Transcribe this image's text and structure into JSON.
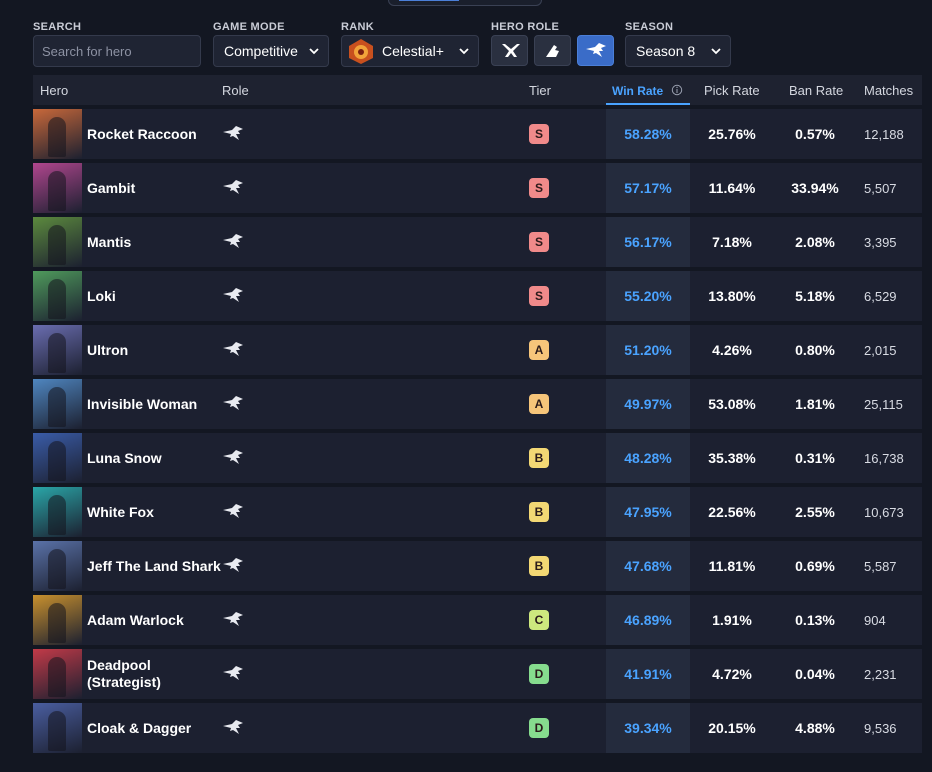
{
  "filters": {
    "search": {
      "label": "SEARCH",
      "placeholder": "Search for hero"
    },
    "game_mode": {
      "label": "GAME MODE",
      "value": "Competitive"
    },
    "rank": {
      "label": "RANK",
      "value": "Celestial+"
    },
    "hero_role": {
      "label": "HERO ROLE"
    },
    "season": {
      "label": "SEASON",
      "value": "Season 8"
    }
  },
  "table": {
    "headers": [
      "Hero",
      "Role",
      "Tier",
      "Win Rate",
      "Pick Rate",
      "Ban Rate",
      "Matches"
    ],
    "rows": [
      {
        "hero": "Rocket Raccoon",
        "tier": "S",
        "tier_color": "#f08a8a",
        "win_rate": "58.28%",
        "pick_rate": "25.76%",
        "ban_rate": "0.57%",
        "matches": "12,188"
      },
      {
        "hero": "Gambit",
        "tier": "S",
        "tier_color": "#f08a8a",
        "win_rate": "57.17%",
        "pick_rate": "11.64%",
        "ban_rate": "33.94%",
        "matches": "5,507"
      },
      {
        "hero": "Mantis",
        "tier": "S",
        "tier_color": "#f08a8a",
        "win_rate": "56.17%",
        "pick_rate": "7.18%",
        "ban_rate": "2.08%",
        "matches": "3,395"
      },
      {
        "hero": "Loki",
        "tier": "S",
        "tier_color": "#f08a8a",
        "win_rate": "55.20%",
        "pick_rate": "13.80%",
        "ban_rate": "5.18%",
        "matches": "6,529"
      },
      {
        "hero": "Ultron",
        "tier": "A",
        "tier_color": "#f6c57a",
        "win_rate": "51.20%",
        "pick_rate": "4.26%",
        "ban_rate": "0.80%",
        "matches": "2,015"
      },
      {
        "hero": "Invisible Woman",
        "tier": "A",
        "tier_color": "#f6c57a",
        "win_rate": "49.97%",
        "pick_rate": "53.08%",
        "ban_rate": "1.81%",
        "matches": "25,115"
      },
      {
        "hero": "Luna Snow",
        "tier": "B",
        "tier_color": "#f3d874",
        "win_rate": "48.28%",
        "pick_rate": "35.38%",
        "ban_rate": "0.31%",
        "matches": "16,738"
      },
      {
        "hero": "White Fox",
        "tier": "B",
        "tier_color": "#f3d874",
        "win_rate": "47.95%",
        "pick_rate": "22.56%",
        "ban_rate": "2.55%",
        "matches": "10,673"
      },
      {
        "hero": "Jeff The Land Shark",
        "tier": "B",
        "tier_color": "#f3d874",
        "win_rate": "47.68%",
        "pick_rate": "11.81%",
        "ban_rate": "0.69%",
        "matches": "5,587"
      },
      {
        "hero": "Adam Warlock",
        "tier": "C",
        "tier_color": "#cde87e",
        "win_rate": "46.89%",
        "pick_rate": "1.91%",
        "ban_rate": "0.13%",
        "matches": "904"
      },
      {
        "hero": "Deadpool\n(Strategist)",
        "tier": "D",
        "tier_color": "#86dc8e",
        "win_rate": "41.91%",
        "pick_rate": "4.72%",
        "ban_rate": "0.04%",
        "matches": "2,231"
      },
      {
        "hero": "Cloak & Dagger",
        "tier": "D",
        "tier_color": "#86dc8e",
        "win_rate": "39.34%",
        "pick_rate": "20.15%",
        "ban_rate": "4.88%",
        "matches": "9,536"
      }
    ]
  }
}
